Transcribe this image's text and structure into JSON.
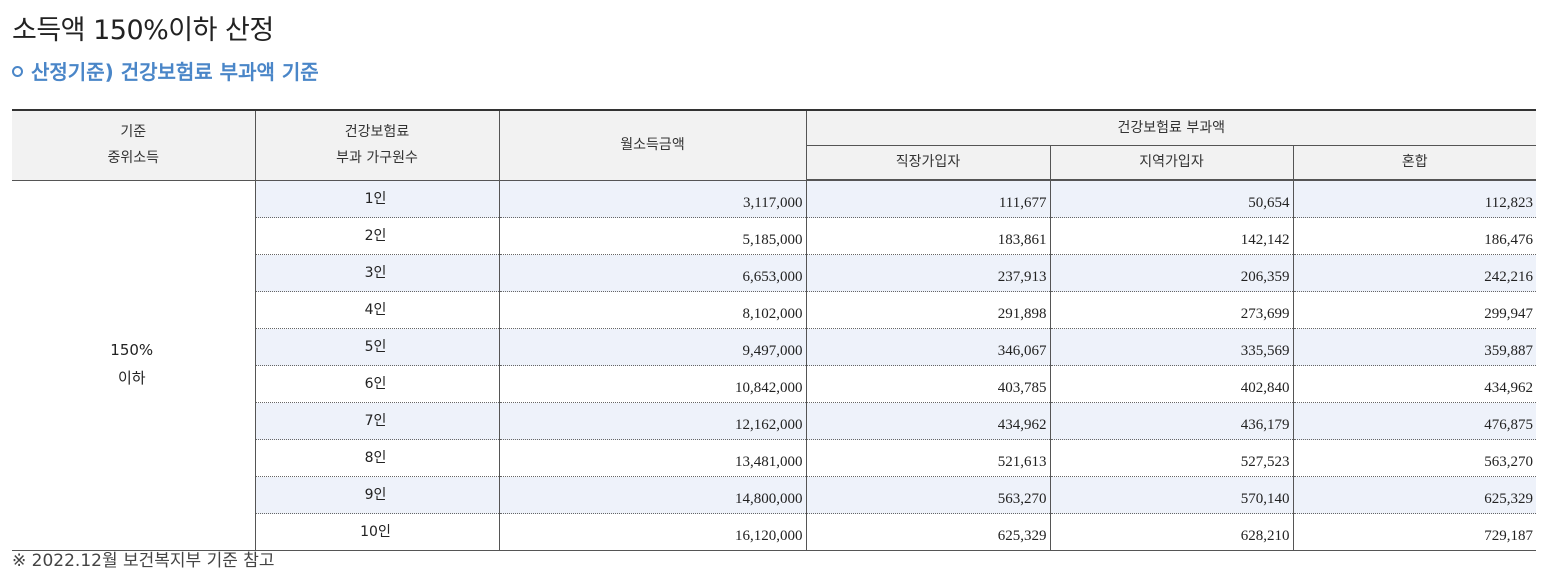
{
  "page": {
    "title": "소득액 150%이하 산정",
    "section_title": "산정기준) 건강보험료 부과액 기준",
    "footnote": "※ 2022.12월 보건복지부 기준 참고"
  },
  "table": {
    "headers": {
      "median_income_line1": "기준",
      "median_income_line2": "중위소득",
      "household_line1": "건강보험료",
      "household_line2": "부과 가구원수",
      "monthly_income": "월소득금액",
      "premium_group": "건강보험료 부과액",
      "employee": "직장가입자",
      "regional": "지역가입자",
      "mixed": "혼합"
    },
    "group_line1": "150%",
    "group_line2": "이하",
    "rows": [
      {
        "members": "1인",
        "income": "3,117,000",
        "employee": "111,677",
        "regional": "50,654",
        "mixed": "112,823"
      },
      {
        "members": "2인",
        "income": "5,185,000",
        "employee": "183,861",
        "regional": "142,142",
        "mixed": "186,476"
      },
      {
        "members": "3인",
        "income": "6,653,000",
        "employee": "237,913",
        "regional": "206,359",
        "mixed": "242,216"
      },
      {
        "members": "4인",
        "income": "8,102,000",
        "employee": "291,898",
        "regional": "273,699",
        "mixed": "299,947"
      },
      {
        "members": "5인",
        "income": "9,497,000",
        "employee": "346,067",
        "regional": "335,569",
        "mixed": "359,887"
      },
      {
        "members": "6인",
        "income": "10,842,000",
        "employee": "403,785",
        "regional": "402,840",
        "mixed": "434,962"
      },
      {
        "members": "7인",
        "income": "12,162,000",
        "employee": "434,962",
        "regional": "436,179",
        "mixed": "476,875"
      },
      {
        "members": "8인",
        "income": "13,481,000",
        "employee": "521,613",
        "regional": "527,523",
        "mixed": "563,270"
      },
      {
        "members": "9인",
        "income": "14,800,000",
        "employee": "563,270",
        "regional": "570,140",
        "mixed": "625,329"
      },
      {
        "members": "10인",
        "income": "16,120,000",
        "employee": "625,329",
        "regional": "628,210",
        "mixed": "729,187"
      }
    ]
  },
  "colors": {
    "accent": "#4a86c8",
    "header_bg": "#f2f2f2",
    "row_shade": "#eef2fa"
  }
}
